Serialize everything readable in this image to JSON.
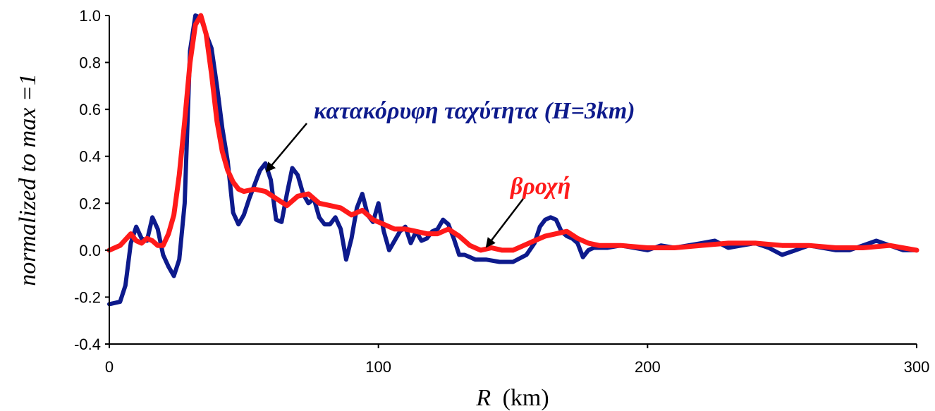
{
  "colors": {
    "vertical_velocity": "#0d1a8c",
    "rain": "#ff1a1a",
    "axis": "#000000"
  },
  "chart_data": {
    "type": "line",
    "xlabel_var": "R",
    "xlabel_unit": "(km)",
    "ylabel": "normalized to max =1",
    "xlim": [
      0,
      300
    ],
    "ylim": [
      -0.4,
      1.0
    ],
    "xticks": [
      "0",
      "100",
      "200",
      "300"
    ],
    "yticks": [
      "1.0",
      "0.8",
      "0.6",
      "0.4",
      "0.2",
      "0.0",
      "-0.2",
      "-0.4"
    ],
    "annotations": {
      "vertical_velocity": "κατακόρυφη ταχύτητα (H=3km)",
      "rain": "βροχή"
    },
    "series": [
      {
        "key": "vertical_velocity",
        "x": [
          0,
          4,
          6,
          8,
          10,
          12,
          14,
          16,
          18,
          20,
          22,
          24,
          26,
          28,
          30,
          32,
          34,
          36,
          38,
          40,
          42,
          44,
          46,
          48,
          50,
          52,
          54,
          56,
          58,
          60,
          62,
          64,
          66,
          68,
          70,
          72,
          74,
          76,
          78,
          80,
          82,
          84,
          86,
          88,
          90,
          92,
          94,
          96,
          98,
          100,
          102,
          104,
          106,
          108,
          110,
          112,
          114,
          116,
          118,
          120,
          122,
          124,
          126,
          128,
          130,
          132,
          134,
          136,
          138,
          140,
          145,
          150,
          155,
          158,
          160,
          162,
          164,
          166,
          168,
          170,
          172,
          174,
          176,
          178,
          180,
          185,
          190,
          195,
          200,
          205,
          210,
          215,
          220,
          225,
          230,
          235,
          240,
          245,
          250,
          255,
          260,
          265,
          270,
          275,
          280,
          285,
          290,
          295,
          300
        ],
        "y": [
          -0.23,
          -0.22,
          -0.15,
          0.03,
          0.1,
          0.05,
          0.04,
          0.14,
          0.09,
          -0.02,
          -0.07,
          -0.11,
          -0.04,
          0.2,
          0.85,
          1.0,
          0.99,
          0.92,
          0.86,
          0.7,
          0.52,
          0.38,
          0.16,
          0.11,
          0.15,
          0.22,
          0.28,
          0.34,
          0.37,
          0.3,
          0.13,
          0.12,
          0.24,
          0.35,
          0.32,
          0.24,
          0.2,
          0.22,
          0.14,
          0.11,
          0.11,
          0.14,
          0.09,
          -0.04,
          0.05,
          0.18,
          0.24,
          0.15,
          0.12,
          0.2,
          0.08,
          0.0,
          0.04,
          0.08,
          0.1,
          0.03,
          0.08,
          0.04,
          0.05,
          0.08,
          0.09,
          0.13,
          0.11,
          0.05,
          -0.02,
          -0.02,
          -0.03,
          -0.04,
          -0.04,
          -0.04,
          -0.05,
          -0.05,
          -0.02,
          0.03,
          0.1,
          0.13,
          0.14,
          0.13,
          0.08,
          0.06,
          0.05,
          0.03,
          -0.03,
          0.0,
          0.01,
          0.01,
          0.02,
          0.01,
          0.0,
          0.02,
          0.01,
          0.02,
          0.03,
          0.04,
          0.01,
          0.02,
          0.03,
          0.01,
          -0.02,
          0.0,
          0.02,
          0.01,
          0.0,
          0.0,
          0.02,
          0.04,
          0.02,
          0.0,
          0.0
        ]
      },
      {
        "key": "rain",
        "x": [
          0,
          4,
          8,
          10,
          12,
          14,
          16,
          18,
          20,
          22,
          24,
          26,
          28,
          30,
          32,
          34,
          36,
          38,
          40,
          42,
          44,
          46,
          48,
          50,
          54,
          58,
          62,
          66,
          70,
          74,
          78,
          82,
          86,
          90,
          94,
          98,
          102,
          106,
          110,
          114,
          118,
          122,
          126,
          130,
          134,
          138,
          142,
          146,
          150,
          154,
          158,
          162,
          166,
          170,
          174,
          178,
          182,
          190,
          200,
          210,
          220,
          230,
          240,
          250,
          260,
          270,
          280,
          290,
          300
        ],
        "y": [
          0.0,
          0.02,
          0.07,
          0.04,
          0.03,
          0.05,
          0.04,
          0.02,
          0.02,
          0.07,
          0.15,
          0.32,
          0.55,
          0.8,
          0.96,
          1.0,
          0.92,
          0.75,
          0.55,
          0.42,
          0.34,
          0.29,
          0.26,
          0.25,
          0.26,
          0.25,
          0.22,
          0.19,
          0.23,
          0.24,
          0.2,
          0.19,
          0.18,
          0.15,
          0.17,
          0.13,
          0.11,
          0.09,
          0.09,
          0.08,
          0.07,
          0.07,
          0.09,
          0.06,
          0.02,
          0.0,
          0.01,
          0.0,
          0.0,
          0.02,
          0.04,
          0.06,
          0.07,
          0.08,
          0.05,
          0.03,
          0.02,
          0.02,
          0.01,
          0.01,
          0.02,
          0.03,
          0.03,
          0.02,
          0.02,
          0.01,
          0.01,
          0.02,
          0.0
        ]
      }
    ]
  }
}
